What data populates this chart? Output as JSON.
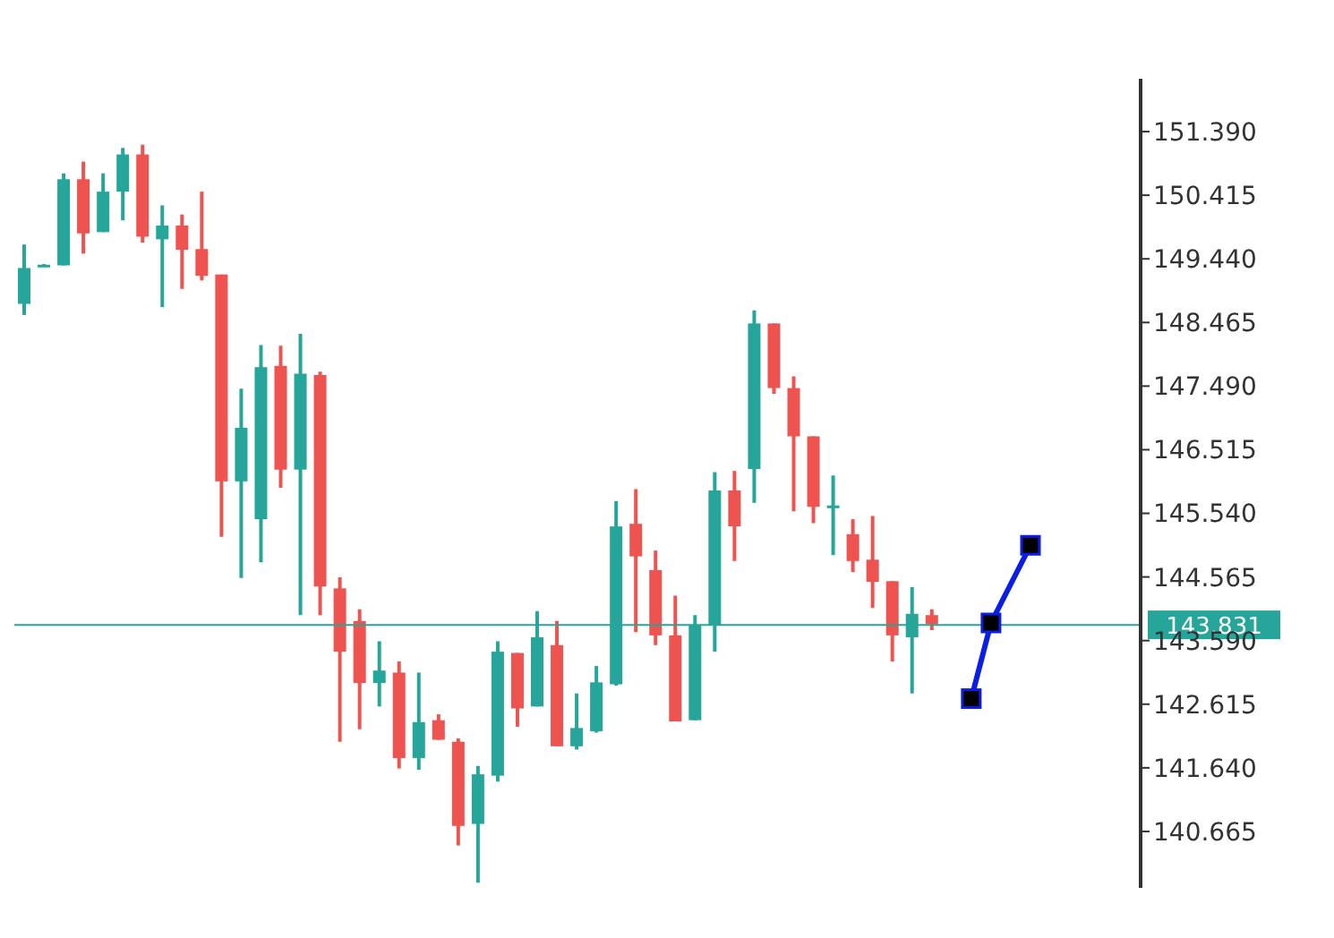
{
  "chart_data": {
    "type": "candlestick",
    "tick_labels": "y",
    "categories": [
      null,
      null,
      null,
      null,
      null,
      null,
      null,
      null,
      null,
      null,
      null,
      null,
      null,
      null,
      null,
      null,
      null,
      null,
      null,
      null,
      null,
      null,
      null,
      null,
      null,
      null,
      null,
      null,
      null,
      null,
      null,
      null,
      null,
      null,
      null,
      null,
      null,
      null,
      null,
      null,
      null,
      null,
      null,
      null,
      null,
      null,
      null,
      null,
      null,
      null,
      null,
      null
    ],
    "ylim": [
      139.8,
      152.2
    ],
    "yticks": [
      {
        "value": 140.665,
        "label": "140.665"
      },
      {
        "value": 141.64,
        "label": "141.640"
      },
      {
        "value": 142.615,
        "label": "142.615"
      },
      {
        "value": 143.59,
        "label": "143.590"
      },
      {
        "value": 144.565,
        "label": "144.565"
      },
      {
        "value": 145.54,
        "label": "145.540"
      },
      {
        "value": 146.515,
        "label": "146.515"
      },
      {
        "value": 147.49,
        "label": "147.490"
      },
      {
        "value": 148.465,
        "label": "148.465"
      },
      {
        "value": 149.44,
        "label": "149.440"
      },
      {
        "value": 150.415,
        "label": "150.415"
      },
      {
        "value": 151.39,
        "label": "151.390"
      }
    ],
    "grid": false,
    "legend": false,
    "ref_lines": [
      {
        "axis": "y",
        "value": 143.831,
        "label": "143.831",
        "color": "#26a69a"
      }
    ],
    "series": [
      {
        "type": "candlestick",
        "ohlc": [
          [
            148.75,
            149.66,
            148.58,
            149.3
          ],
          [
            149.33,
            149.36,
            149.32,
            149.35
          ],
          [
            149.34,
            150.75,
            149.34,
            150.66
          ],
          [
            150.66,
            150.93,
            149.52,
            149.83
          ],
          [
            149.85,
            150.75,
            149.85,
            150.47
          ],
          [
            150.47,
            151.14,
            150.03,
            151.04
          ],
          [
            151.04,
            151.19,
            149.69,
            149.78
          ],
          [
            149.74,
            150.26,
            148.7,
            149.95
          ],
          [
            149.95,
            150.12,
            148.98,
            149.58
          ],
          [
            149.59,
            150.47,
            149.11,
            149.18
          ],
          [
            149.2,
            149.2,
            145.18,
            146.03
          ],
          [
            146.03,
            147.45,
            144.55,
            146.85
          ],
          [
            145.45,
            148.12,
            144.79,
            147.78
          ],
          [
            147.8,
            148.11,
            145.93,
            146.21
          ],
          [
            146.21,
            148.29,
            143.98,
            147.68
          ],
          [
            147.66,
            147.71,
            143.98,
            144.42
          ],
          [
            144.39,
            144.56,
            142.04,
            143.42
          ],
          [
            143.89,
            144.07,
            142.23,
            142.94
          ],
          [
            142.94,
            143.58,
            142.58,
            143.13
          ],
          [
            143.1,
            143.27,
            141.63,
            141.79
          ],
          [
            141.79,
            143.1,
            141.61,
            142.34
          ],
          [
            142.37,
            142.46,
            142.07,
            142.07
          ],
          [
            142.04,
            142.09,
            140.45,
            140.75
          ],
          [
            140.78,
            141.67,
            139.88,
            141.54
          ],
          [
            141.52,
            143.58,
            141.43,
            143.42
          ],
          [
            143.4,
            143.4,
            142.27,
            142.55
          ],
          [
            142.58,
            144.04,
            142.58,
            143.64
          ],
          [
            143.52,
            143.89,
            141.97,
            141.97
          ],
          [
            141.97,
            142.78,
            141.92,
            142.25
          ],
          [
            142.2,
            143.2,
            142.18,
            142.95
          ],
          [
            142.92,
            145.73,
            142.9,
            145.34
          ],
          [
            145.38,
            145.91,
            143.72,
            144.88
          ],
          [
            144.67,
            144.97,
            143.52,
            143.67
          ],
          [
            143.67,
            144.28,
            142.35,
            142.35
          ],
          [
            142.37,
            143.98,
            142.37,
            143.82
          ],
          [
            143.82,
            146.17,
            143.42,
            145.89
          ],
          [
            145.89,
            146.19,
            144.81,
            145.34
          ],
          [
            146.22,
            148.65,
            145.7,
            148.45
          ],
          [
            148.45,
            148.45,
            147.37,
            147.46
          ],
          [
            147.46,
            147.64,
            145.57,
            146.72
          ],
          [
            146.72,
            146.72,
            145.39,
            145.64
          ],
          [
            145.64,
            146.12,
            144.9,
            145.66
          ],
          [
            145.22,
            145.45,
            144.64,
            144.81
          ],
          [
            144.83,
            145.5,
            144.09,
            144.49
          ],
          [
            144.5,
            144.5,
            143.27,
            143.67
          ],
          [
            143.64,
            144.41,
            142.78,
            144.0
          ],
          [
            143.98,
            144.07,
            143.75,
            143.84
          ],
          null,
          null,
          null,
          null,
          null
        ],
        "colors": [
          "#26a69a",
          "#26a69a",
          "#26a69a",
          "#ef5350",
          "#26a69a",
          "#26a69a",
          "#ef5350",
          "#26a69a",
          "#ef5350",
          "#ef5350",
          "#ef5350",
          "#26a69a",
          "#26a69a",
          "#ef5350",
          "#26a69a",
          "#ef5350",
          "#ef5350",
          "#ef5350",
          "#26a69a",
          "#ef5350",
          "#26a69a",
          "#ef5350",
          "#ef5350",
          "#26a69a",
          "#26a69a",
          "#ef5350",
          "#26a69a",
          "#ef5350",
          "#26a69a",
          "#26a69a",
          "#26a69a",
          "#ef5350",
          "#ef5350",
          "#ef5350",
          "#26a69a",
          "#26a69a",
          "#ef5350",
          "#26a69a",
          "#ef5350",
          "#ef5350",
          "#ef5350",
          "#26a69a",
          "#ef5350",
          "#ef5350",
          "#ef5350",
          "#26a69a",
          "#ef5350",
          null,
          null,
          null,
          null,
          null
        ]
      },
      {
        "type": "line",
        "values": [
          null,
          null,
          null,
          null,
          null,
          null,
          null,
          null,
          null,
          null,
          null,
          null,
          null,
          null,
          null,
          null,
          null,
          null,
          null,
          null,
          null,
          null,
          null,
          null,
          null,
          null,
          null,
          null,
          null,
          null,
          null,
          null,
          null,
          null,
          null,
          null,
          null,
          null,
          null,
          null,
          null,
          null,
          null,
          null,
          null,
          null,
          null,
          null,
          142.7,
          143.86,
          null,
          145.05
        ],
        "color": "#0a1ee6",
        "marker": "square",
        "line_style": "solid"
      }
    ]
  }
}
